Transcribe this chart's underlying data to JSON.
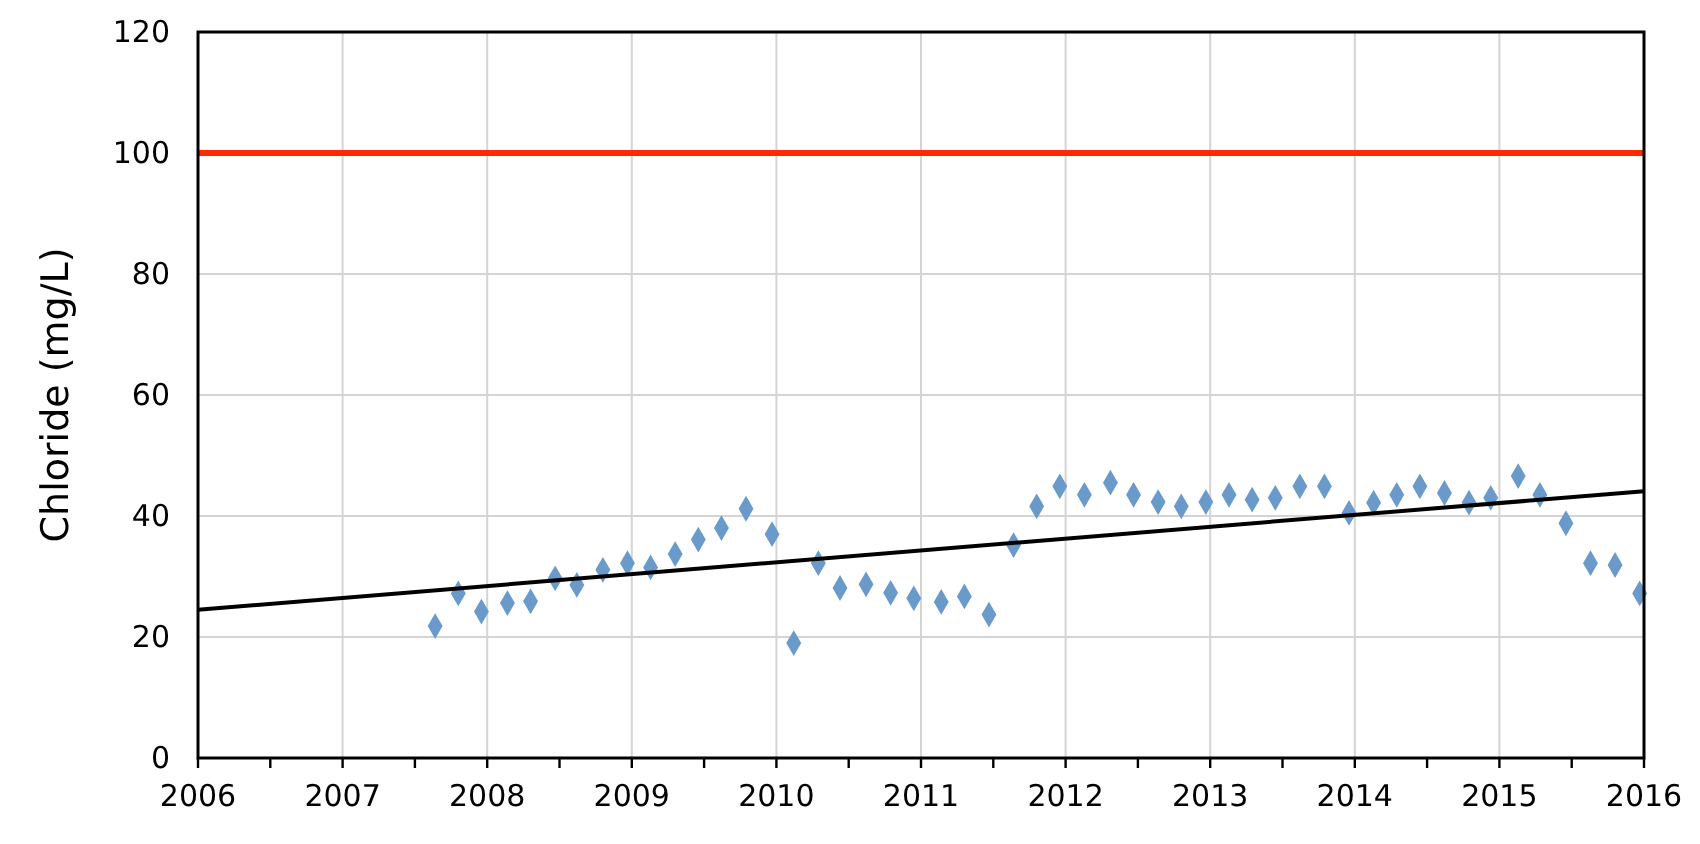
{
  "chart_data": {
    "type": "scatter",
    "ylabel": "Chloride (mg/L)",
    "xlim": [
      2006,
      2016
    ],
    "ylim": [
      0,
      120
    ],
    "xticks": [
      2006,
      {
        "value": 2006.5,
        "label": null
      },
      2007,
      {
        "value": 2007.5,
        "label": null
      },
      2008,
      {
        "value": 2008.5,
        "label": null
      },
      2009,
      {
        "value": 2009.5,
        "label": null
      },
      2010,
      {
        "value": 2010.5,
        "label": null
      },
      2011,
      {
        "value": 2011.5,
        "label": null
      },
      2012,
      {
        "value": 2012.5,
        "label": null
      },
      2013,
      {
        "value": 2013.5,
        "label": null
      },
      2014,
      {
        "value": 2014.5,
        "label": null
      },
      2015,
      {
        "value": 2015.5,
        "label": null
      },
      2016
    ],
    "yticks": [
      0,
      20,
      40,
      60,
      80,
      100,
      120
    ],
    "grid": true,
    "series": [
      {
        "marker": "diamond",
        "color": "#6a9ac9",
        "x": [
          2007.64,
          2007.8,
          2007.96,
          2008.14,
          2008.3,
          2008.47,
          2008.62,
          2008.8,
          2008.97,
          2009.13,
          2009.3,
          2009.46,
          2009.62,
          2009.79,
          2009.97,
          2010.12,
          2010.29,
          2010.44,
          2010.62,
          2010.79,
          2010.95,
          2011.14,
          2011.3,
          2011.47,
          2011.64,
          2011.8,
          2011.96,
          2012.13,
          2012.31,
          2012.47,
          2012.64,
          2012.8,
          2012.97,
          2013.13,
          2013.29,
          2013.45,
          2013.62,
          2013.79,
          2013.96,
          2014.13,
          2014.29,
          2014.45,
          2014.62,
          2014.79,
          2014.94,
          2015.13,
          2015.28,
          2015.46,
          2015.63,
          2015.8,
          2015.97
        ],
        "values": [
          21.8,
          27.2,
          24.2,
          25.6,
          25.9,
          29.7,
          28.6,
          31.1,
          32.2,
          31.5,
          33.7,
          36.1,
          38.0,
          41.2,
          37.0,
          19.0,
          32.2,
          28.1,
          28.7,
          27.3,
          26.4,
          25.8,
          26.7,
          23.7,
          35.2,
          41.6,
          44.9,
          43.5,
          45.5,
          43.5,
          42.3,
          41.6,
          42.3,
          43.5,
          42.7,
          43.0,
          44.9,
          44.9,
          40.5,
          42.2,
          43.5,
          44.9,
          43.8,
          42.2,
          43.0,
          46.6,
          43.5,
          38.8,
          32.2,
          31.9,
          27.2
        ]
      },
      {
        "type": "line",
        "marker": "none",
        "color": "#000000",
        "x": [
          2006,
          2016
        ],
        "values": [
          24.5,
          44.1
        ]
      }
    ],
    "ref_lines": [
      {
        "axis": "y",
        "value": 100,
        "color": "#ff2a00"
      }
    ]
  }
}
